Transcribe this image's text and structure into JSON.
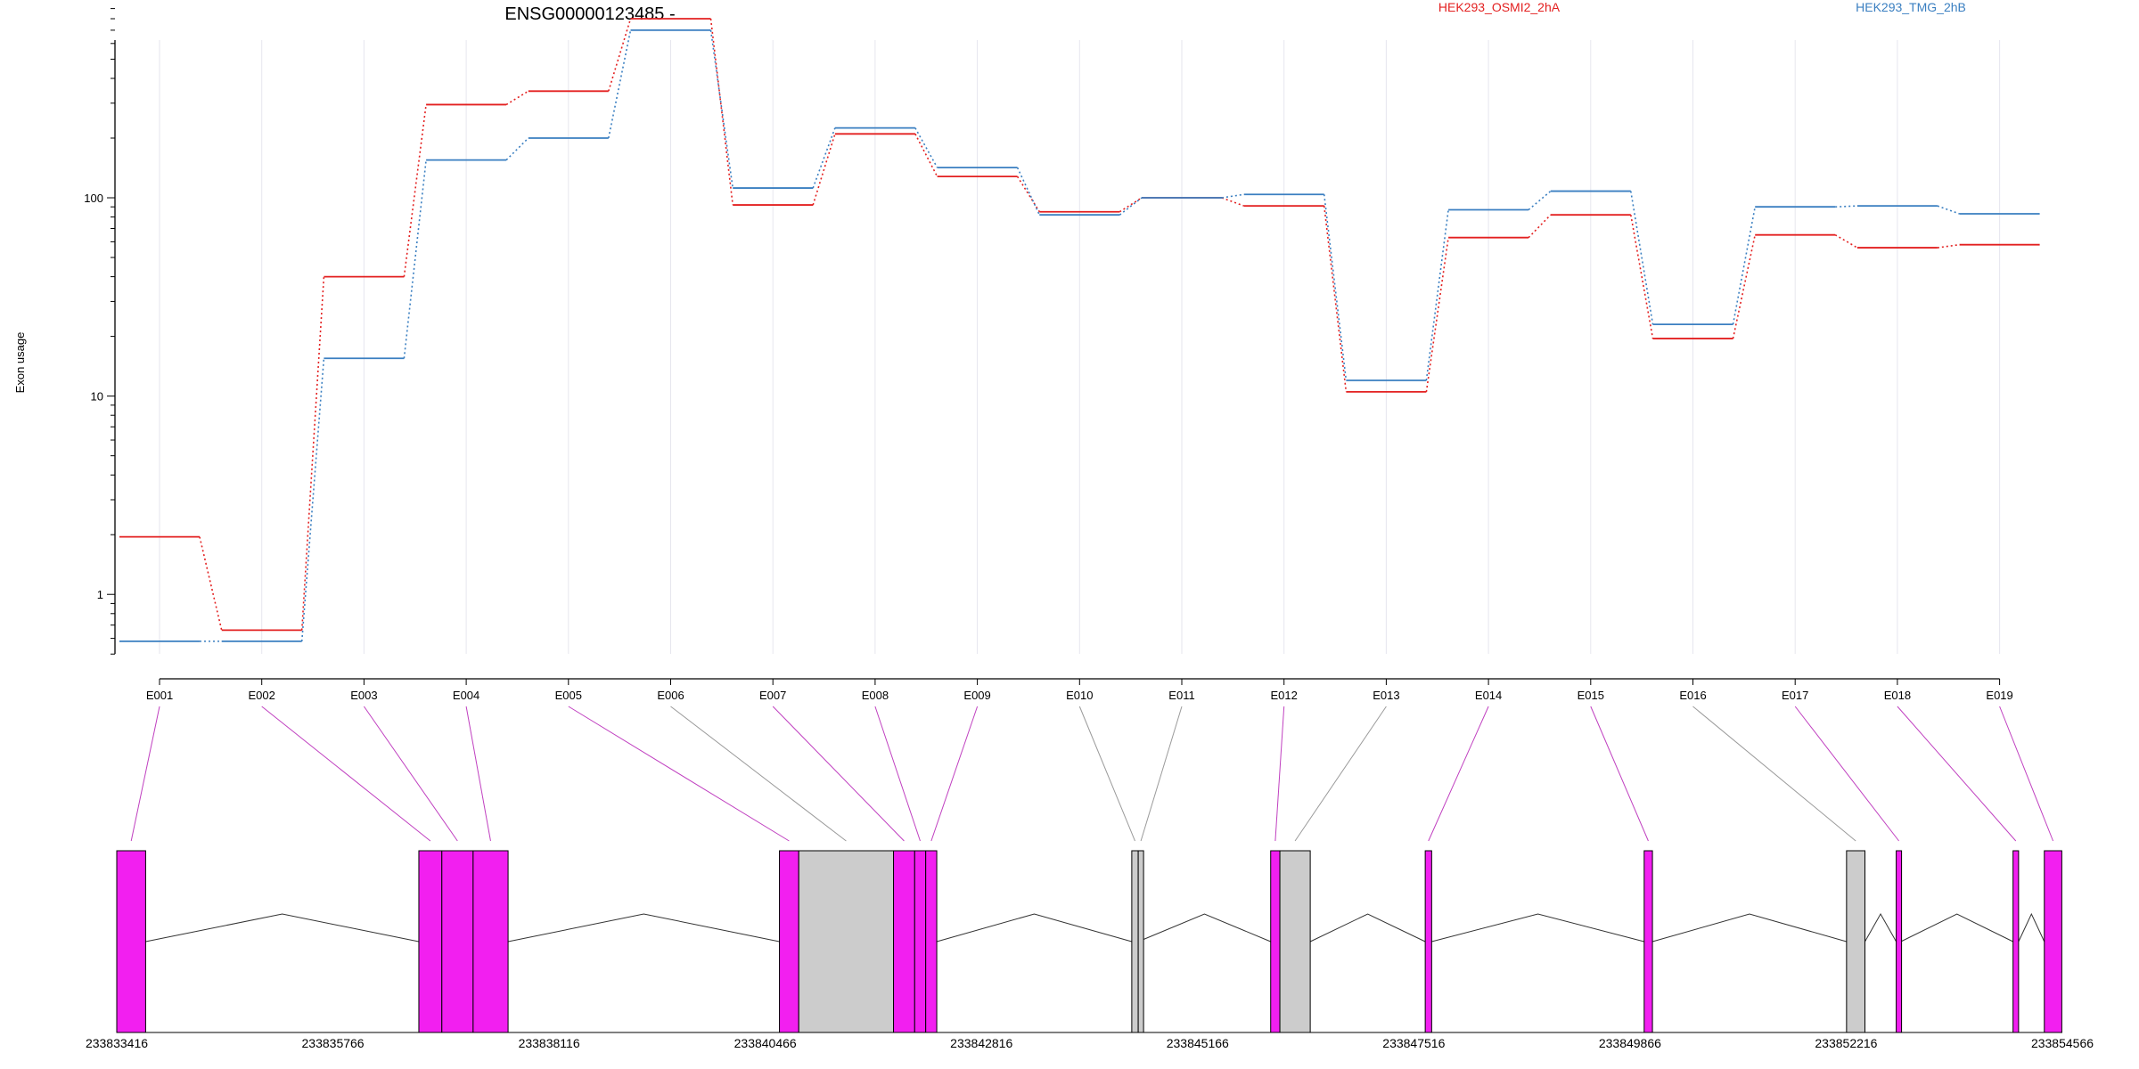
{
  "title": "ENSG00000123485 -",
  "colors": {
    "sample_a": "#e32020",
    "sample_b": "#3a7fc1",
    "connector_expressed": "#c040c0",
    "connector_flat": "#9a9a9a",
    "exon_fill": "#f21ff0",
    "exon_grey": "#cccccc"
  },
  "chart_data": {
    "type": "line",
    "title": "ENSG00000123485 -",
    "ylabel": "Exon usage",
    "xlabel": "",
    "y_scale": "log",
    "ylim": [
      0.45,
      900
    ],
    "y_ticks": [
      1,
      10,
      100
    ],
    "y_tick_labels": [
      "1",
      "10",
      "100"
    ],
    "grid": "vertical",
    "legend_position": "top",
    "categories": [
      "E001",
      "E002",
      "E003",
      "E004",
      "E005",
      "E006",
      "E007",
      "E008",
      "E009",
      "E010",
      "E011",
      "E012",
      "E013",
      "E014",
      "E015",
      "E016",
      "E017",
      "E018",
      "E019"
    ],
    "series": [
      {
        "name": "HEK293_OSMI2_2hA",
        "color": "#e32020",
        "values": [
          1.95,
          0.66,
          40,
          295,
          345,
          800,
          92,
          210,
          128,
          85,
          100,
          91,
          10.5,
          63,
          82,
          19.5,
          65,
          56,
          58
        ]
      },
      {
        "name": "HEK293_TMG_2hB",
        "color": "#3a7fc1",
        "values": [
          0.58,
          0.58,
          15.5,
          155,
          200,
          700,
          112,
          225,
          142,
          82,
          100,
          104,
          12,
          87,
          108,
          23,
          90,
          91,
          83
        ]
      }
    ]
  },
  "gene_model": {
    "coordinate_labels": [
      "233833416",
      "233835766",
      "233838116",
      "233840466",
      "233842816",
      "233845166",
      "233847516",
      "233849866",
      "233852216",
      "233854566"
    ],
    "coordinate_values": [
      233833416,
      233835766,
      233838116,
      233840466,
      233842816,
      233845166,
      233847516,
      233849866,
      233852216,
      233854566
    ],
    "exons": [
      {
        "id": "E001",
        "start": 233833416,
        "end": 233833730,
        "expressed": true
      },
      {
        "id": "E002",
        "start": 233836700,
        "end": 233836950,
        "expressed": true
      },
      {
        "id": "E003",
        "start": 233836950,
        "end": 233837290,
        "expressed": true
      },
      {
        "id": "E004",
        "start": 233837290,
        "end": 233837670,
        "expressed": true
      },
      {
        "id": "E005",
        "start": 233840620,
        "end": 233840830,
        "expressed": true
      },
      {
        "id": "E006",
        "start": 233840830,
        "end": 233841860,
        "expressed": false
      },
      {
        "id": "E007",
        "start": 233841860,
        "end": 233842090,
        "expressed": true
      },
      {
        "id": "E008",
        "start": 233842090,
        "end": 233842210,
        "expressed": true
      },
      {
        "id": "E009",
        "start": 233842210,
        "end": 233842330,
        "expressed": true
      },
      {
        "id": "E010",
        "start": 233844450,
        "end": 233844520,
        "expressed": false
      },
      {
        "id": "E011",
        "start": 233844520,
        "end": 233844520,
        "expressed": false
      },
      {
        "id": "E012",
        "start": 233845960,
        "end": 233846060,
        "expressed": true
      },
      {
        "id": "E013",
        "start": 233846060,
        "end": 233846390,
        "expressed": false
      },
      {
        "id": "E014",
        "start": 233847640,
        "end": 233847710,
        "expressed": true
      },
      {
        "id": "E015",
        "start": 233850020,
        "end": 233850110,
        "expressed": true
      },
      {
        "id": "E016",
        "start": 233852220,
        "end": 233852420,
        "expressed": false
      },
      {
        "id": "E017",
        "start": 233852760,
        "end": 233852810,
        "expressed": true
      },
      {
        "id": "E018",
        "start": 233854030,
        "end": 233854090,
        "expressed": true
      },
      {
        "id": "E019",
        "start": 233854370,
        "end": 233854560,
        "expressed": true
      }
    ]
  }
}
